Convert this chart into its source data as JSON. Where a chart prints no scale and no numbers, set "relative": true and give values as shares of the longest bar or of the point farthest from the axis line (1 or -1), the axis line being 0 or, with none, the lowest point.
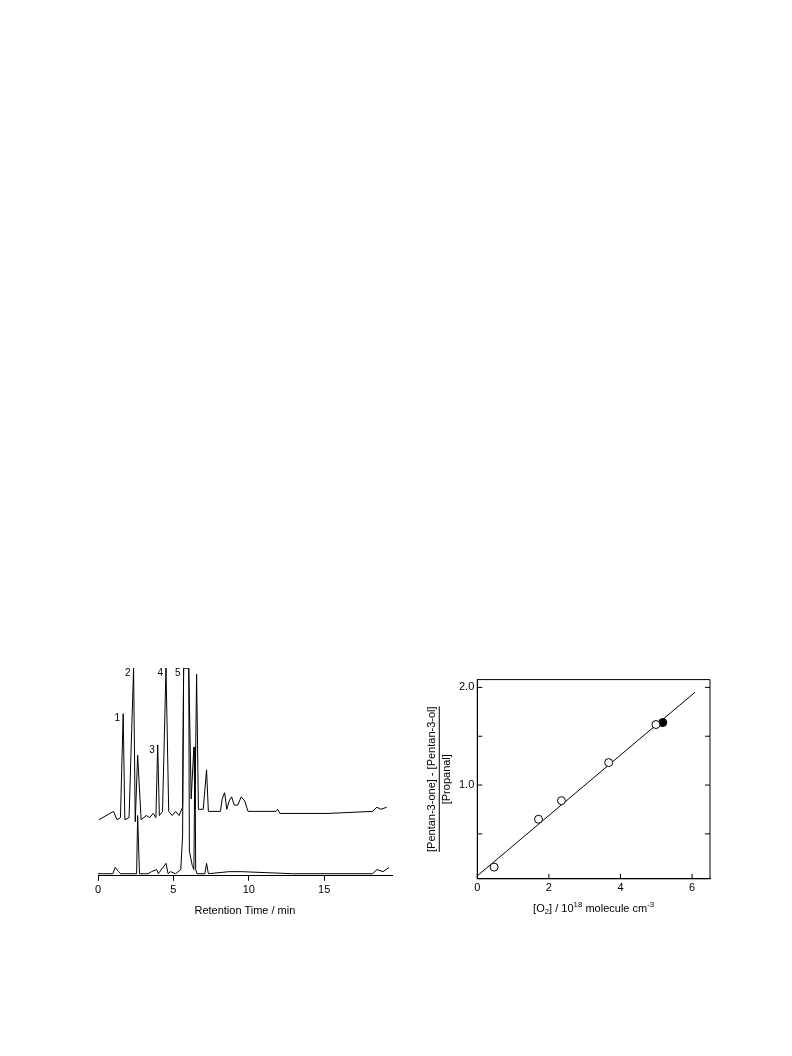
{
  "chart_data": [
    {
      "type": "line",
      "relative": true,
      "xlabel": "Retention Time / min",
      "xlim": [
        0,
        19.5
      ],
      "xticks": [
        0,
        5,
        10,
        15
      ],
      "series": [
        {
          "color": "#000000",
          "x": [
            0.07,
            1.03,
            1.26,
            1.49,
            1.67,
            1.78,
            2.06,
            2.36,
            2.47,
            2.63,
            2.86,
            3.2,
            3.43,
            3.66,
            3.84,
            3.96,
            4.07,
            4.28,
            4.51,
            4.69,
            4.92,
            5.15,
            5.38,
            5.61,
            5.68,
            6.02,
            6.18,
            6.36,
            6.43,
            6.54,
            6.66,
            6.98,
            7.2,
            7.32,
            8.12,
            8.24,
            8.4,
            8.54,
            8.7,
            8.86,
            9.04,
            9.27,
            9.5,
            9.73,
            9.95,
            11.8,
            11.92,
            12.06,
            12.93,
            15.2,
            18.2,
            18.5,
            18.76,
            19.15
          ],
          "values": [
            0.27,
            0.31,
            0.27,
            0.28,
            0.78,
            0.27,
            0.28,
            1.0,
            0.26,
            0.58,
            0.27,
            0.29,
            0.28,
            0.3,
            0.28,
            0.63,
            0.29,
            0.31,
            1.0,
            0.31,
            0.29,
            0.31,
            0.29,
            0.33,
            1.0,
            1.0,
            0.37,
            0.62,
            0.32,
            0.97,
            0.32,
            0.32,
            0.51,
            0.31,
            0.31,
            0.37,
            0.4,
            0.32,
            0.36,
            0.38,
            0.34,
            0.34,
            0.38,
            0.36,
            0.31,
            0.31,
            0.32,
            0.3,
            0.3,
            0.3,
            0.31,
            0.33,
            0.32,
            0.33
          ]
        },
        {
          "color": "#000000",
          "x": [
            0.0,
            0.98,
            1.14,
            1.37,
            1.49,
            2.4,
            2.56,
            2.63,
            2.75,
            3.09,
            3.32,
            3.55,
            3.89,
            4.0,
            4.51,
            4.65,
            4.8,
            5.15,
            5.49,
            5.61,
            5.68,
            6.02,
            6.06,
            6.25,
            6.36,
            6.43,
            6.48,
            6.57,
            7.09,
            7.2,
            7.32,
            8.7,
            9.5,
            12.9,
            18.2,
            18.5,
            18.9,
            19.3
          ],
          "values": [
            0.01,
            0.01,
            0.04,
            0.02,
            0.01,
            0.01,
            0.01,
            0.29,
            0.01,
            0.01,
            0.01,
            0.02,
            0.03,
            0.01,
            0.06,
            0.01,
            0.02,
            0.01,
            0.03,
            0.19,
            1.0,
            1.0,
            0.12,
            0.05,
            0.03,
            0.62,
            0.03,
            0.01,
            0.01,
            0.06,
            0.01,
            0.02,
            0.02,
            0.01,
            0.01,
            0.03,
            0.02,
            0.04
          ]
        }
      ],
      "annotations": [
        {
          "text": "1",
          "x": 1.67,
          "y": 0.78
        },
        {
          "text": "2",
          "x": 2.36,
          "y": 1.0
        },
        {
          "text": "3",
          "x": 3.96,
          "y": 0.63
        },
        {
          "text": "4",
          "x": 4.51,
          "y": 1.0
        },
        {
          "text": "5",
          "x": 5.68,
          "y": 1.0
        }
      ]
    },
    {
      "type": "scatter",
      "xlabel": "[O$_{2}$] / 10$^{18}$ molecule cm$^{-3}$",
      "ylabel": "[Pentan-3-one] - [Pentan-3-ol]\n[Propanal]",
      "xlim": [
        0,
        6.5
      ],
      "ylim": [
        0.04,
        2.08
      ],
      "xticks": [
        0,
        2,
        4,
        6
      ],
      "yticks": [
        {
          "value": 0.5,
          "label": null
        },
        {
          "value": 1.0,
          "label": "1.0"
        },
        {
          "value": 1.5,
          "label": null
        },
        {
          "value": 2.0,
          "label": "2.0"
        }
      ],
      "series": [
        {
          "type": "scatter",
          "marker": "circle",
          "color": "#000000",
          "x": [
            0.47,
            1.71,
            2.35,
            3.67,
            4.99
          ],
          "values": [
            0.16,
            0.65,
            0.84,
            1.23,
            1.62
          ]
        },
        {
          "type": "scatter",
          "marker": "circle",
          "color": "#000000",
          "x": [
            5.18
          ],
          "values": [
            1.64
          ]
        },
        {
          "type": "line",
          "color": "#000000",
          "x": [
            0,
            6.08
          ],
          "values": [
            0.07,
            1.95
          ]
        }
      ]
    }
  ]
}
